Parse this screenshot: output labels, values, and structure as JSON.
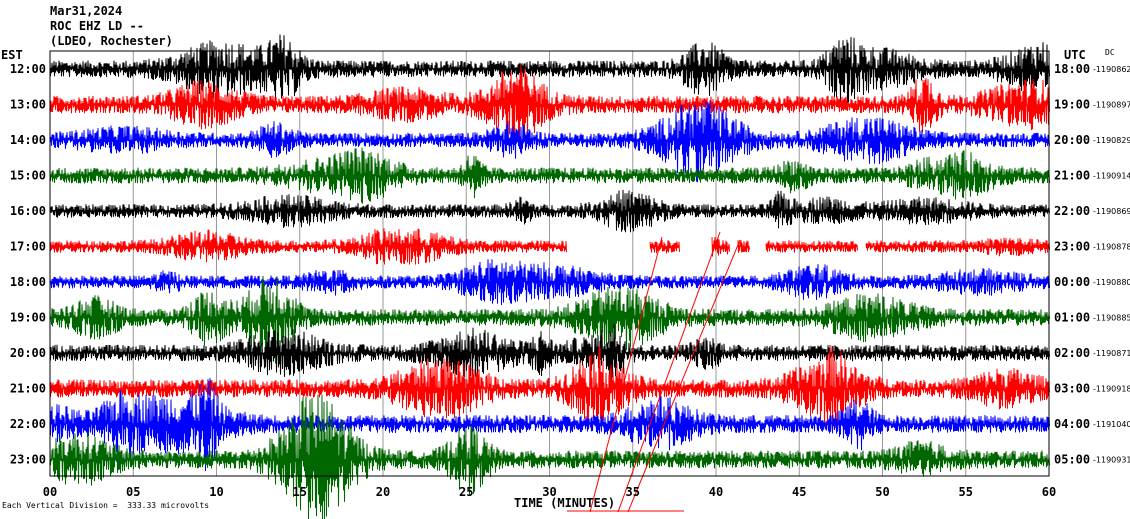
{
  "header": {
    "date": "Mar31,2024",
    "station": "ROC EHZ LD --",
    "network": "(LDEO, Rochester)"
  },
  "left_timezone": "EST",
  "right_timezone": "UTC",
  "dc_label": "DC",
  "footer_note": "Each Vertical Division =  333.33 microvolts",
  "chart_data": {
    "type": "line",
    "title": "",
    "xlabel": "TIME (MINUTES)",
    "ylabel": "",
    "xlim": [
      0,
      60
    ],
    "x_ticks": [
      "00",
      "05",
      "10",
      "15",
      "20",
      "25",
      "30",
      "35",
      "40",
      "45",
      "50",
      "55",
      "60"
    ],
    "grid": true,
    "series_colors": [
      "#000000",
      "#ff0000",
      "#0000ff",
      "#006600"
    ],
    "rows": [
      {
        "est": "12:00",
        "utc": "18:00",
        "dc": "-1190862",
        "color": "#000000",
        "activity": 0.9
      },
      {
        "est": "13:00",
        "utc": "19:00",
        "dc": "-1190897",
        "color": "#ff0000",
        "activity": 0.95
      },
      {
        "est": "14:00",
        "utc": "20:00",
        "dc": "-1190829",
        "color": "#0000ff",
        "activity": 0.65
      },
      {
        "est": "15:00",
        "utc": "21:00",
        "dc": "-1190914",
        "color": "#006600",
        "activity": 0.8
      },
      {
        "est": "16:00",
        "utc": "22:00",
        "dc": "-1190869",
        "color": "#000000",
        "activity": 0.55
      },
      {
        "est": "17:00",
        "utc": "23:00",
        "dc": "-1190878",
        "color": "#ff0000",
        "activity": 0.45
      },
      {
        "est": "18:00",
        "utc": "00:00",
        "dc": "-1190880",
        "color": "#0000ff",
        "activity": 0.5
      },
      {
        "est": "19:00",
        "utc": "01:00",
        "dc": "-1190885",
        "color": "#006600",
        "activity": 0.9
      },
      {
        "est": "20:00",
        "utc": "02:00",
        "dc": "-1190871",
        "color": "#000000",
        "activity": 0.85
      },
      {
        "est": "21:00",
        "utc": "03:00",
        "dc": "-1190918",
        "color": "#ff0000",
        "activity": 1.0
      },
      {
        "est": "22:00",
        "utc": "04:00",
        "dc": "-1191040",
        "color": "#0000ff",
        "activity": 1.0
      },
      {
        "est": "23:00",
        "utc": "05:00",
        "dc": "-1190931",
        "color": "#006600",
        "activity": 1.0
      }
    ],
    "gaps": [
      {
        "row": 5,
        "from": 31.0,
        "to": 36.0
      },
      {
        "row": 5,
        "from": 37.8,
        "to": 39.7
      },
      {
        "row": 5,
        "from": 40.8,
        "to": 41.3
      },
      {
        "row": 5,
        "from": 42.0,
        "to": 43.0
      },
      {
        "row": 5,
        "from": 48.5,
        "to": 49.0
      }
    ]
  }
}
